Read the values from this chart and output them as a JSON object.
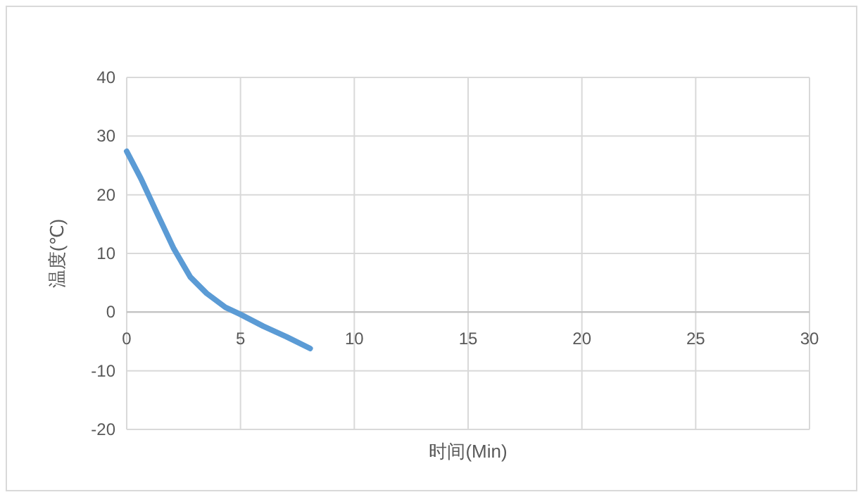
{
  "chart_data": {
    "type": "line",
    "xlabel": "时间(Min)",
    "ylabel": "温度(℃)",
    "xlim": [
      0,
      30
    ],
    "xticks": [
      0,
      5,
      10,
      15,
      20,
      25,
      30
    ],
    "ylim": [
      -20,
      40
    ],
    "yticks": [
      -20,
      -10,
      0,
      10,
      20,
      30,
      40
    ],
    "grid": true,
    "marker": "none",
    "series": [
      {
        "color": "#5b9bd5",
        "x": [
          0,
          0.62,
          1.34,
          2.07,
          2.79,
          3.51,
          4.34,
          5,
          6,
          7.02,
          8.06
        ],
        "values": [
          27.4,
          22.8,
          16.8,
          10.8,
          6,
          3.2,
          0.8,
          -0.4,
          -2.4,
          -4.2,
          -6.2
        ]
      }
    ]
  }
}
